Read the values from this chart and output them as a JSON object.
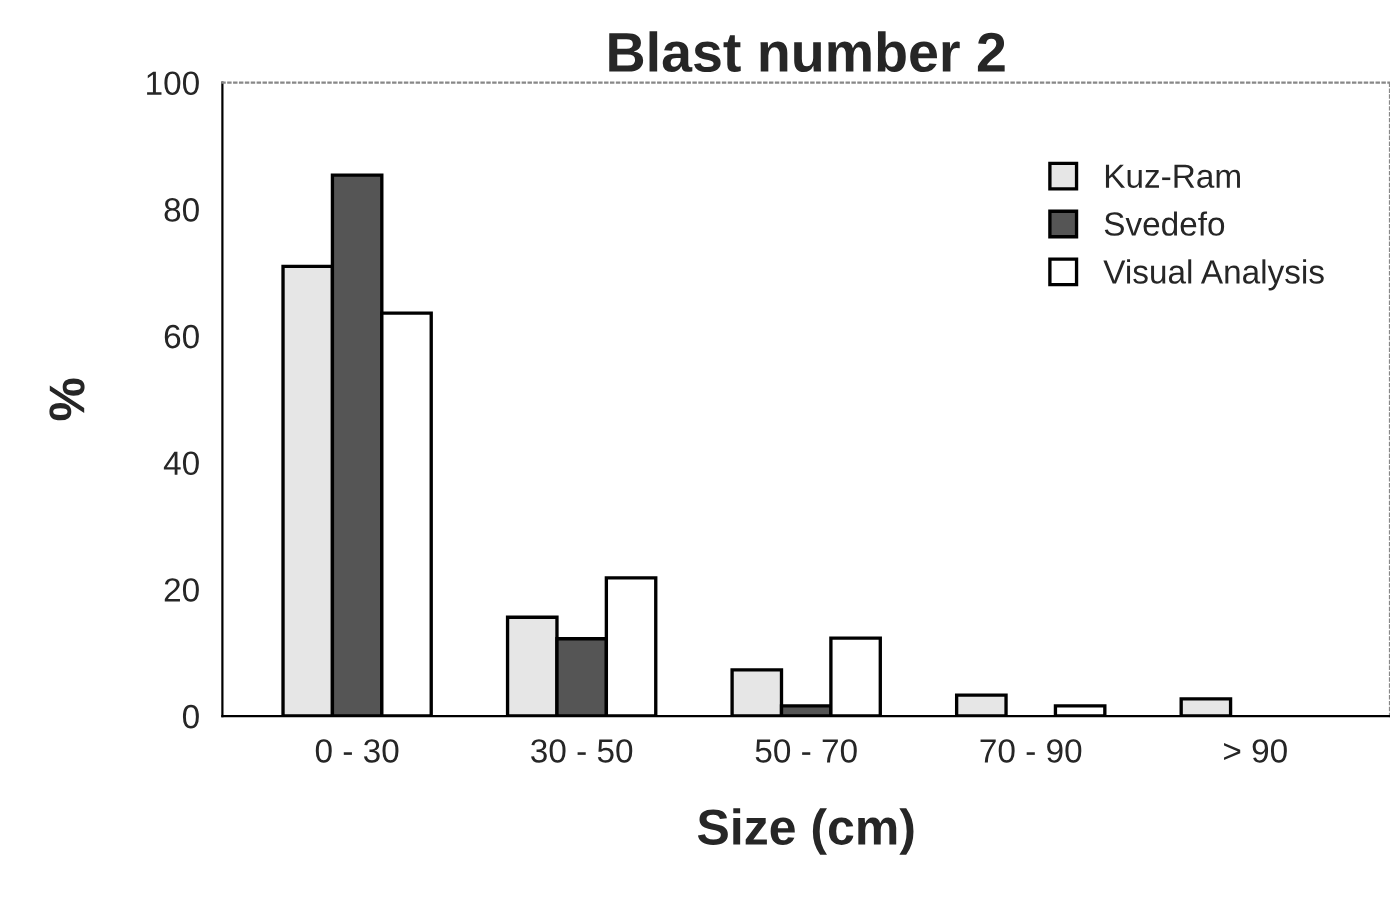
{
  "chart_data": {
    "type": "bar",
    "title": "Blast number 2",
    "xlabel": "Size (cm)",
    "ylabel": "%",
    "categories": [
      "0 - 30",
      "30 - 50",
      "50 - 70",
      "70 - 90",
      "> 90"
    ],
    "series": [
      {
        "name": "Kuz-Ram",
        "color": "#e6e6e6",
        "values": [
          71.0,
          15.6,
          7.3,
          3.3,
          2.7
        ]
      },
      {
        "name": "Svedefo",
        "color": "#555555",
        "values": [
          85.4,
          12.2,
          1.6,
          null,
          null
        ]
      },
      {
        "name": "Visual Analysis",
        "color": "#ffffff",
        "values": [
          63.6,
          21.8,
          12.3,
          1.6,
          null
        ]
      }
    ],
    "ylim": [
      0,
      100
    ],
    "yticks": [
      0,
      20,
      40,
      60,
      80,
      100
    ],
    "grid": false,
    "legend": "top right"
  }
}
